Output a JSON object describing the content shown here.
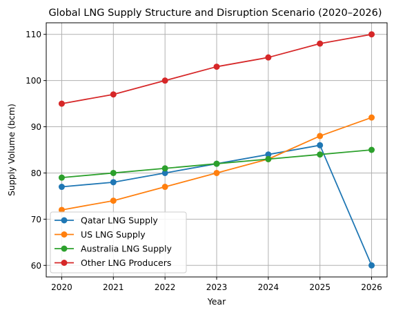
{
  "chart_data": {
    "type": "line",
    "title": "Global LNG Supply Structure and Disruption Scenario (2020–2026)",
    "xlabel": "Year",
    "ylabel": "Supply Volume (bcm)",
    "x": [
      2020,
      2021,
      2022,
      2023,
      2024,
      2025,
      2026
    ],
    "x_tick_labels": [
      "2020",
      "2021",
      "2022",
      "2023",
      "2024",
      "2025",
      "2026"
    ],
    "y_ticks": [
      60,
      70,
      80,
      90,
      100,
      110
    ],
    "y_tick_labels": [
      "60",
      "70",
      "80",
      "90",
      "100",
      "110"
    ],
    "xlim": [
      2019.7,
      2026.3
    ],
    "ylim": [
      57.5,
      112.5
    ],
    "grid": true,
    "legend_position": "lower-left",
    "series": [
      {
        "name": "Qatar LNG Supply",
        "color": "#1f77b4",
        "values": [
          77,
          78,
          80,
          82,
          84,
          86,
          60
        ]
      },
      {
        "name": "US LNG Supply",
        "color": "#ff7f0e",
        "values": [
          72,
          74,
          77,
          80,
          83,
          88,
          92
        ]
      },
      {
        "name": "Australia LNG Supply",
        "color": "#2ca02c",
        "values": [
          79,
          80,
          81,
          82,
          83,
          84,
          85
        ]
      },
      {
        "name": "Other LNG Producers",
        "color": "#d62728",
        "values": [
          95,
          97,
          100,
          103,
          105,
          108,
          110
        ]
      }
    ]
  }
}
